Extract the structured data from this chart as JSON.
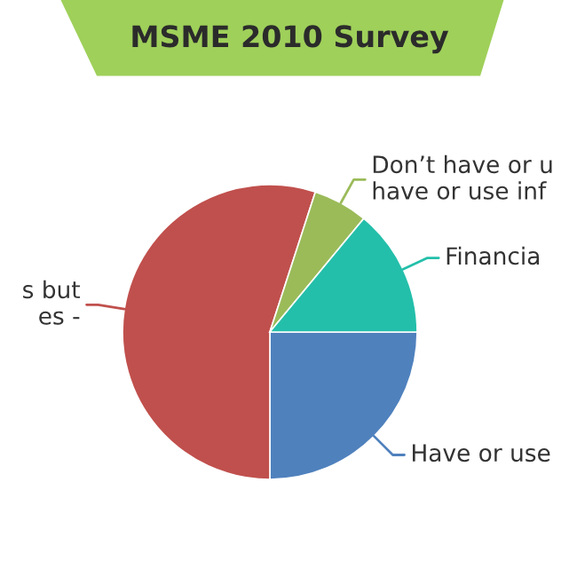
{
  "chart_data": {
    "type": "pie",
    "title": "MSME 2010 Survey",
    "categories": [
      "Have or use",
      "s but\nes -",
      "Don’t have or u\nhave or use inf",
      "Financia"
    ],
    "values": [
      25,
      55,
      6,
      14
    ],
    "colors": [
      "#4f81bd",
      "#c0504d",
      "#9bbb59",
      "#23bfaa"
    ],
    "legend": false
  }
}
